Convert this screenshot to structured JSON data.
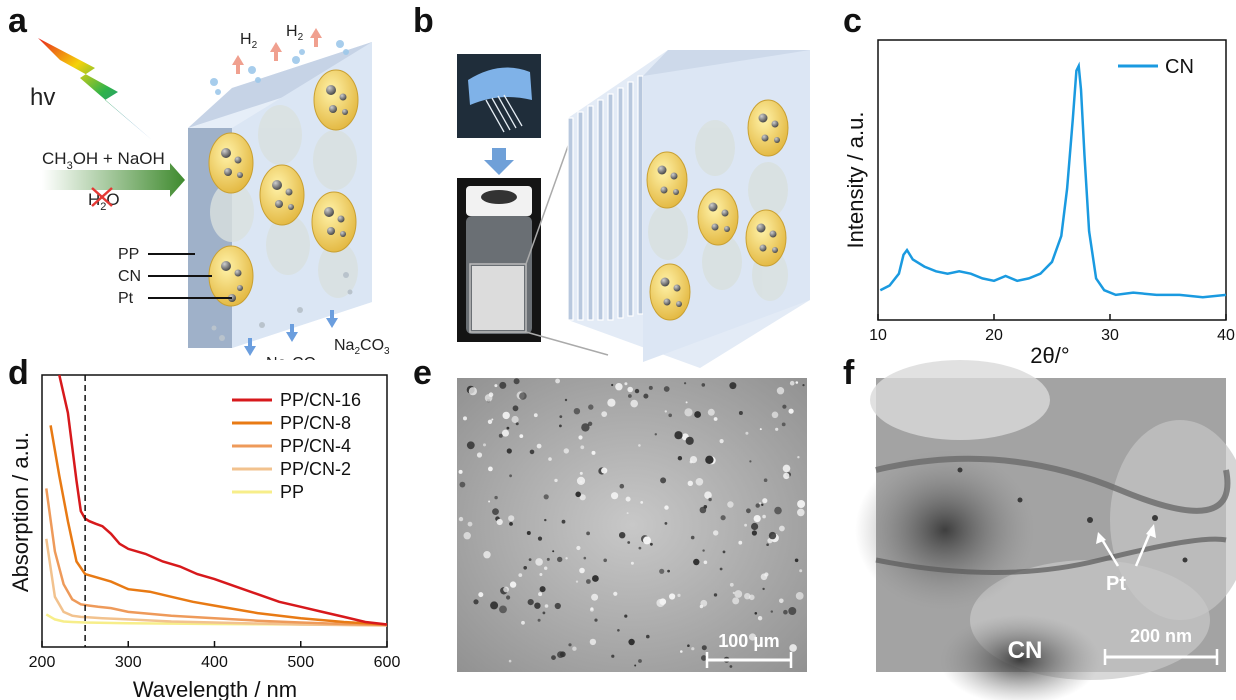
{
  "panels": {
    "a": "a",
    "b": "b",
    "c": "c",
    "d": "d",
    "e": "e",
    "f": "f"
  },
  "panel_a": {
    "hv": "hv",
    "reactant_main": "CH",
    "reactant_sub": "3",
    "reactant_rest": "OH + NaOH",
    "water_main": "H",
    "water_sub": "2",
    "water_rest": "O",
    "h2_main": "H",
    "h2_sub": "2",
    "product_main": "Na",
    "product_sub1": "2",
    "product_mid": "CO",
    "product_sub2": "3",
    "layers": [
      "PP",
      "CN",
      "Pt"
    ]
  },
  "chart_data": [
    {
      "type": "line",
      "panel": "c",
      "xlabel": "2θ/°",
      "ylabel": "Intensity / a.u.",
      "xlim": [
        10,
        40
      ],
      "xticks": [
        10,
        20,
        30,
        40
      ],
      "legend_position": "top-right",
      "series": [
        {
          "name": "CN",
          "color": "#1a9ae0",
          "x": [
            10.2,
            11.0,
            11.8,
            12.2,
            12.5,
            13.0,
            14.0,
            15.0,
            16.0,
            17.0,
            18.0,
            19.0,
            20.0,
            21.0,
            22.0,
            23.0,
            24.0,
            25.0,
            25.8,
            26.3,
            26.8,
            27.1,
            27.3,
            27.5,
            27.8,
            28.2,
            28.8,
            29.5,
            30.5,
            32.0,
            34.0,
            36.0,
            38.0,
            40.0
          ],
          "y": [
            0.05,
            0.07,
            0.12,
            0.2,
            0.22,
            0.18,
            0.15,
            0.13,
            0.12,
            0.13,
            0.12,
            0.1,
            0.09,
            0.11,
            0.09,
            0.1,
            0.12,
            0.17,
            0.28,
            0.48,
            0.78,
            0.98,
            1.0,
            0.9,
            0.62,
            0.3,
            0.1,
            0.05,
            0.03,
            0.04,
            0.03,
            0.03,
            0.02,
            0.03
          ]
        }
      ]
    },
    {
      "type": "line",
      "panel": "d",
      "xlabel": "Wavelength / nm",
      "ylabel": "Absorption / a.u.",
      "xlim": [
        200,
        600
      ],
      "xticks": [
        200,
        300,
        400,
        500,
        600
      ],
      "marker_line_x": 250,
      "legend_position": "top-right",
      "series": [
        {
          "name": "PP/CN-16",
          "color": "#d7191c",
          "x": [
            220,
            230,
            240,
            245,
            250,
            255,
            262,
            270,
            280,
            290,
            300,
            320,
            340,
            360,
            380,
            400,
            425,
            450,
            475,
            500,
            525,
            550,
            575,
            600
          ],
          "y": [
            1.0,
            0.85,
            0.58,
            0.46,
            0.43,
            0.42,
            0.41,
            0.4,
            0.37,
            0.33,
            0.31,
            0.29,
            0.26,
            0.24,
            0.21,
            0.19,
            0.16,
            0.13,
            0.1,
            0.08,
            0.06,
            0.04,
            0.02,
            0.01
          ]
        },
        {
          "name": "PP/CN-8",
          "color": "#e87a14",
          "x": [
            210,
            220,
            230,
            240,
            250,
            260,
            270,
            280,
            300,
            325,
            350,
            375,
            400,
            425,
            450,
            500,
            550,
            600
          ],
          "y": [
            0.8,
            0.6,
            0.42,
            0.26,
            0.21,
            0.2,
            0.19,
            0.18,
            0.15,
            0.14,
            0.12,
            0.1,
            0.085,
            0.07,
            0.055,
            0.035,
            0.02,
            0.01
          ]
        },
        {
          "name": "PP/CN-4",
          "color": "#ee9a5a",
          "x": [
            205,
            215,
            225,
            235,
            245,
            255,
            265,
            280,
            300,
            350,
            400,
            450,
            500,
            550,
            600
          ],
          "y": [
            0.55,
            0.3,
            0.17,
            0.11,
            0.09,
            0.085,
            0.08,
            0.075,
            0.06,
            0.045,
            0.035,
            0.025,
            0.018,
            0.012,
            0.008
          ]
        },
        {
          "name": "PP/CN-2",
          "color": "#f2c28e",
          "x": [
            205,
            215,
            225,
            235,
            245,
            255,
            270,
            300,
            350,
            400,
            450,
            500,
            550,
            600
          ],
          "y": [
            0.35,
            0.12,
            0.06,
            0.045,
            0.04,
            0.038,
            0.035,
            0.03,
            0.022,
            0.018,
            0.014,
            0.01,
            0.008,
            0.006
          ]
        },
        {
          "name": "PP",
          "color": "#f7ee8a",
          "x": [
            205,
            215,
            225,
            235,
            250,
            300,
            400,
            500,
            600
          ],
          "y": [
            0.05,
            0.03,
            0.022,
            0.02,
            0.018,
            0.015,
            0.012,
            0.01,
            0.008
          ]
        }
      ]
    }
  ],
  "panel_e": {
    "scalebar": "100 µm"
  },
  "panel_f": {
    "scalebar": "200 nm",
    "pt_label": "Pt",
    "cn_label": "CN"
  }
}
